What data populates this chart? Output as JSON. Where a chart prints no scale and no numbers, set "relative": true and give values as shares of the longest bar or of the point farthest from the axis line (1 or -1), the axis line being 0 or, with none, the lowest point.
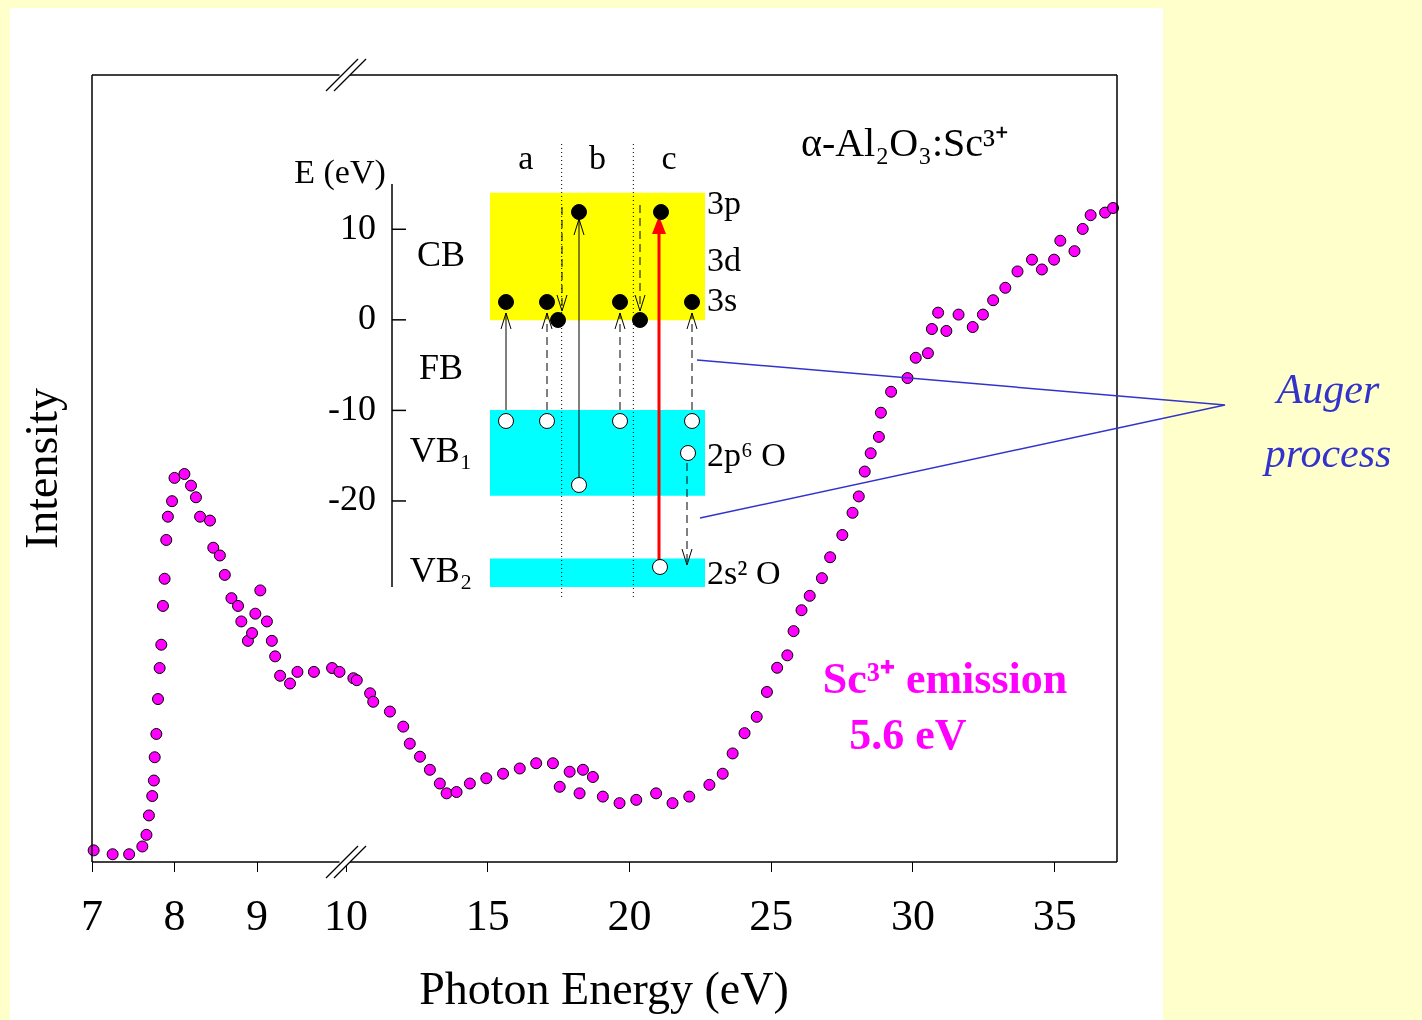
{
  "chart_data": [
    {
      "type": "scatter",
      "ylabel": "Intensity",
      "xlim": [
        7,
        10
      ],
      "xticks": [
        7,
        8,
        9
      ],
      "relative": true,
      "tick_labels": "x",
      "marker": "circle",
      "series": [
        {
          "color": "#ff00ff",
          "x": [
            7.02,
            7.25,
            7.45,
            7.61,
            7.66,
            7.69,
            7.73,
            7.75,
            7.76,
            7.78,
            7.8,
            7.82,
            7.84,
            7.86,
            7.88,
            7.9,
            7.92,
            7.97,
            8.0,
            8.12,
            8.2,
            8.26,
            8.31,
            8.43,
            8.47,
            8.55,
            8.61,
            8.69,
            8.77,
            8.81,
            8.89,
            8.94,
            8.98,
            9.04,
            9.12,
            9.18,
            9.22,
            9.28,
            9.4,
            9.49,
            9.69,
            9.91,
            10.0
          ],
          "values": [
            0.03,
            0.02,
            0.02,
            0.04,
            0.07,
            0.12,
            0.17,
            0.21,
            0.27,
            0.33,
            0.42,
            0.5,
            0.56,
            0.66,
            0.73,
            0.83,
            0.89,
            0.93,
            0.99,
            1,
            0.97,
            0.94,
            0.89,
            0.88,
            0.81,
            0.79,
            0.74,
            0.68,
            0.66,
            0.62,
            0.57,
            0.59,
            0.64,
            0.7,
            0.62,
            0.57,
            0.53,
            0.48,
            0.46,
            0.49,
            0.49,
            0.5,
            0.49
          ]
        }
      ]
    },
    {
      "type": "scatter",
      "xlabel": "Photon Energy (eV)",
      "xlim": [
        10,
        37.2
      ],
      "xticks": [
        10,
        15,
        20,
        25,
        30,
        35
      ],
      "relative": true,
      "tick_labels": "x",
      "marker": "circle",
      "annotations": [
        "α-Al₂O₃:Sc³⁺",
        "Auger process"
      ],
      "series": [
        {
          "name": "Sc³⁺ emission 5.6 eV",
          "color": "#ff00ff",
          "x": [
            10.26,
            10.38,
            10.85,
            10.96,
            11.55,
            12.02,
            12.25,
            12.61,
            12.96,
            13.31,
            13.55,
            13.9,
            14.37,
            14.95,
            15.54,
            16.13,
            16.71,
            17.3,
            17.54,
            17.89,
            18.24,
            18.36,
            18.71,
            19.06,
            19.65,
            20.24,
            20.94,
            21.52,
            22.11,
            22.82,
            23.29,
            23.64,
            24.06,
            24.49,
            24.85,
            25.21,
            25.57,
            25.79,
            26.07,
            26.36,
            26.79,
            27.08,
            27.51,
            27.87,
            28.09,
            28.3,
            28.51,
            28.8,
            28.87,
            29.23,
            29.81,
            30.1,
            30.53,
            30.67,
            30.89,
            31.18,
            31.61,
            32.11,
            32.47,
            32.83,
            33.26,
            33.69,
            34.2,
            34.55,
            34.98,
            35.2,
            35.7,
            35.99,
            36.27,
            36.78,
            37.06
          ],
          "values": [
            0.281,
            0.278,
            0.258,
            0.245,
            0.23,
            0.207,
            0.181,
            0.161,
            0.141,
            0.12,
            0.105,
            0.107,
            0.12,
            0.128,
            0.135,
            0.143,
            0.151,
            0.151,
            0.115,
            0.138,
            0.105,
            0.141,
            0.13,
            0.1,
            0.09,
            0.095,
            0.105,
            0.09,
            0.1,
            0.118,
            0.135,
            0.166,
            0.197,
            0.222,
            0.26,
            0.297,
            0.316,
            0.353,
            0.385,
            0.407,
            0.434,
            0.466,
            0.5,
            0.534,
            0.559,
            0.597,
            0.625,
            0.65,
            0.687,
            0.719,
            0.74,
            0.771,
            0.778,
            0.815,
            0.84,
            0.812,
            0.837,
            0.818,
            0.837,
            0.859,
            0.878,
            0.903,
            0.921,
            0.906,
            0.921,
            0.95,
            0.934,
            0.968,
            0.989,
            0.993,
            1
          ]
        }
      ]
    },
    {
      "type": "bar",
      "ylabel": "E (eV)",
      "categories": [
        "a",
        "b",
        "c"
      ],
      "ylim": [
        -29.5,
        15
      ],
      "yticks": [
        -20,
        -10,
        0,
        10
      ],
      "series": [
        {
          "name": "CB",
          "color": "#ffff00",
          "base": [
            0,
            0,
            0
          ],
          "values": [
            14,
            14,
            14
          ]
        },
        {
          "name": "VB₁",
          "color": "#00ffff",
          "base": [
            -19.4,
            -19.4,
            -19.4
          ],
          "values": [
            9.4,
            9.4,
            9.4
          ]
        },
        {
          "name": "VB₂",
          "color": "#00ffff",
          "base": [
            -29.5,
            -29.5,
            -29.5
          ],
          "values": [
            3.1,
            3.1,
            3.1
          ]
        }
      ],
      "annotations": [
        "3p",
        "3d",
        "3s",
        "2p⁶ O",
        "2s² O",
        "FB"
      ]
    }
  ]
}
